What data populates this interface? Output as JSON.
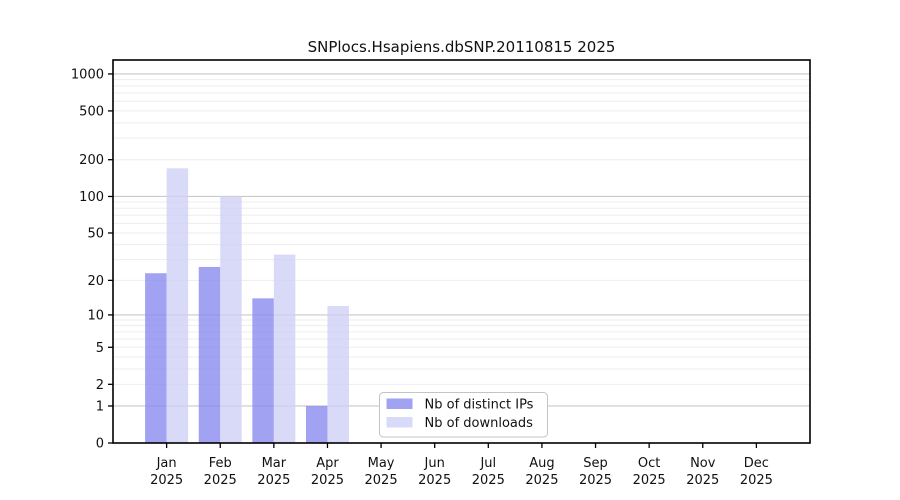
{
  "chart_data": {
    "type": "bar",
    "title": "SNPlocs.Hsapiens.dbSNP.20110815 2025",
    "year_label": "2025",
    "categories": [
      "Jan",
      "Feb",
      "Mar",
      "Apr",
      "May",
      "Jun",
      "Jul",
      "Aug",
      "Sep",
      "Oct",
      "Nov",
      "Dec"
    ],
    "series": [
      {
        "name": "Nb of distinct IPs",
        "color": "#8b8bef",
        "values": [
          23,
          26,
          14,
          1,
          0,
          0,
          0,
          0,
          0,
          0,
          0,
          0
        ]
      },
      {
        "name": "Nb of downloads",
        "color": "#d0d0f6",
        "values": [
          170,
          100,
          33,
          12,
          0,
          0,
          0,
          0,
          0,
          0,
          0,
          0
        ]
      }
    ],
    "yscale": "log10(value+1)",
    "ylim": [
      0,
      1000
    ],
    "yticks": [
      1000,
      500,
      200,
      100,
      50,
      20,
      10,
      5,
      2,
      1,
      0
    ],
    "major_gridlines": [
      1000,
      100,
      10,
      1
    ],
    "grid": true,
    "legend_position": "bottom-center",
    "legend_labels": [
      "Nb of distinct IPs",
      "Nb of downloads"
    ],
    "colors": {
      "axis": "#000000",
      "major_grid": "#c9c9c9",
      "minor_grid": "#ededed",
      "text": "#111111",
      "legend_border": "#c4c4c4",
      "legend_background": "#ffffff"
    }
  }
}
